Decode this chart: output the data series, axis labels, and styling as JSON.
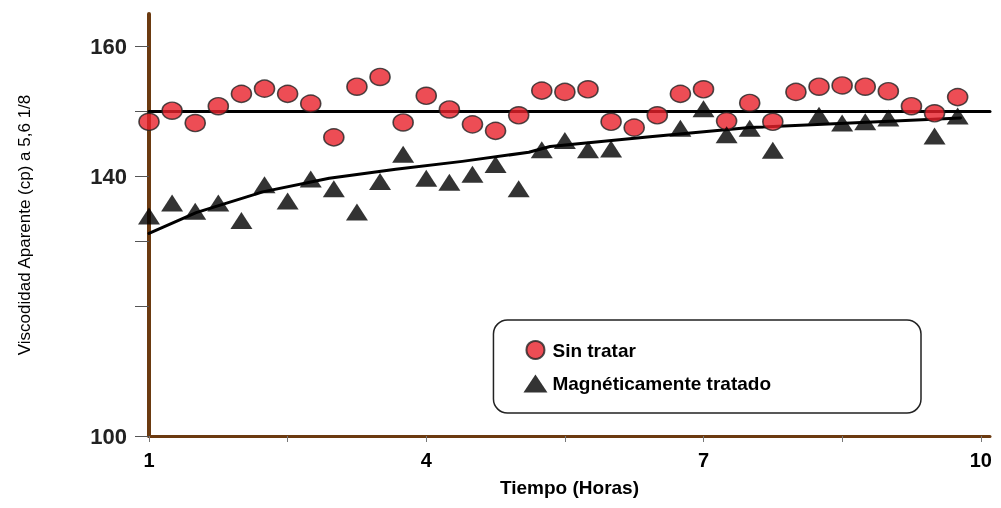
{
  "chart_data": {
    "type": "scatter",
    "xlabel": "Tiempo (Horas)",
    "ylabel": "Viscodidad Aparente (cp) a 5,6 1/8",
    "xlim": [
      1,
      10.1
    ],
    "xticks": [
      1,
      {
        "value": 2.5,
        "label": null
      },
      4,
      {
        "value": 5.5,
        "label": null
      },
      7,
      {
        "value": 8.5,
        "label": null
      },
      10
    ],
    "ylim": [
      100,
      165
    ],
    "yticks": [
      100,
      {
        "value": 120,
        "label": null
      },
      {
        "value": 130,
        "label": null
      },
      140,
      {
        "value": 150,
        "label": null
      },
      160
    ],
    "grid": false,
    "legend": "bottom right",
    "series": [
      {
        "name": "Sin tratar",
        "marker": "circle",
        "color": "#e8202a",
        "x": [
          1,
          1.25,
          1.5,
          1.75,
          2,
          2.25,
          2.5,
          2.75,
          3,
          3.25,
          3.5,
          3.75,
          4,
          4.25,
          4.5,
          4.75,
          5,
          5.25,
          5.5,
          5.75,
          6,
          6.25,
          6.5,
          6.75,
          7,
          7.25,
          7.5,
          7.75,
          8,
          8.25,
          8.5,
          8.75,
          9,
          9.25,
          9.5,
          9.75
        ],
        "values": [
          148.4,
          150.1,
          148.2,
          150.8,
          152.7,
          153.5,
          152.7,
          151.2,
          146.0,
          153.8,
          155.3,
          148.3,
          152.4,
          150.3,
          148.0,
          147.0,
          149.4,
          153.2,
          153.0,
          153.4,
          148.4,
          147.5,
          149.4,
          152.7,
          153.4,
          148.5,
          151.3,
          148.4,
          153.0,
          153.8,
          154.0,
          153.8,
          153.1,
          150.8,
          149.7,
          152.2
        ]
      },
      {
        "name": "Magnéticamente tratado",
        "marker": "triangle",
        "color": "#000000",
        "x": [
          1,
          1.25,
          1.5,
          1.75,
          2,
          2.25,
          2.5,
          2.75,
          3,
          3.25,
          3.5,
          3.75,
          4,
          4.25,
          4.5,
          4.75,
          5,
          5.25,
          5.5,
          5.75,
          6,
          6.75,
          7,
          7.25,
          7.5,
          7.75,
          8.25,
          8.5,
          8.75,
          9,
          9.5,
          9.75
        ],
        "values": [
          133.9,
          135.9,
          134.6,
          135.9,
          133.2,
          138.7,
          136.2,
          139.6,
          138.1,
          134.5,
          139.2,
          143.4,
          139.7,
          139.1,
          140.3,
          141.8,
          138.1,
          144.1,
          145.5,
          144.1,
          144.2,
          147.4,
          150.4,
          146.4,
          147.4,
          144.0,
          149.4,
          148.2,
          148.4,
          149.0,
          146.2,
          149.3
        ]
      },
      {
        "type": "line",
        "marker": "none",
        "line_style": "solid",
        "color": "#000000",
        "x": [
          1,
          10.1
        ],
        "values": [
          150,
          150
        ]
      },
      {
        "type": "line",
        "marker": "none",
        "line_style": "solid",
        "color": "#000000",
        "x": [
          1,
          1.51,
          2.23,
          2.95,
          3.67,
          4.39,
          5.11,
          5.34,
          6.42,
          7.5,
          8.59,
          9.78
        ],
        "values": [
          131.2,
          134.4,
          137.6,
          139.7,
          141.1,
          142.3,
          143.7,
          144.6,
          146.1,
          147.5,
          148.2,
          149.0
        ]
      }
    ]
  }
}
